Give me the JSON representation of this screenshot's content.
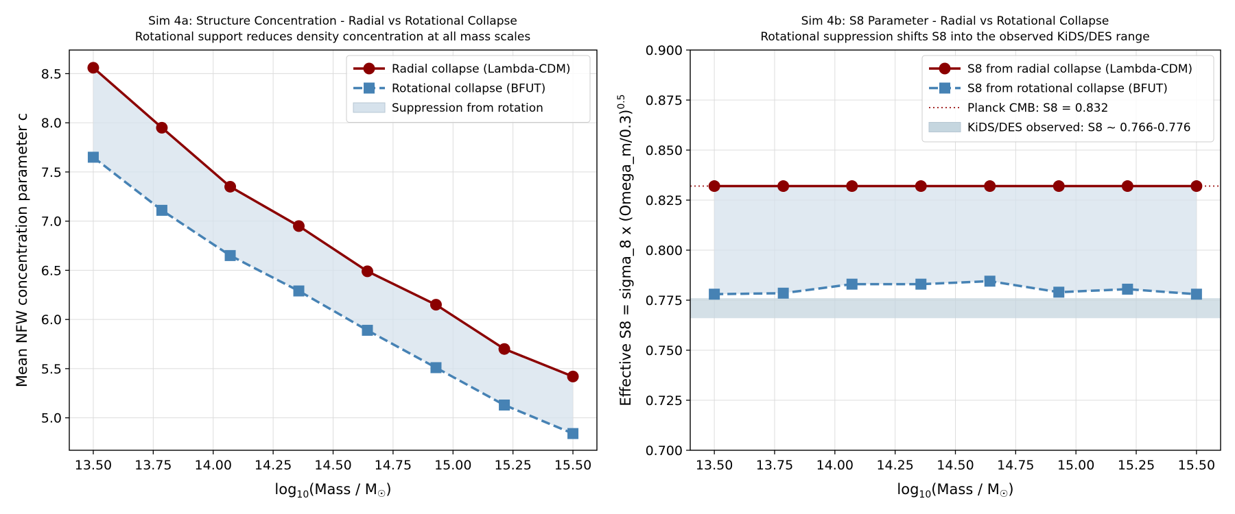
{
  "colors": {
    "radial": "#8b0000",
    "rotational": "#4682b4",
    "fill": "#d6e2ec",
    "band": "#c5d6df",
    "planck": "#a52a2a",
    "grid": "#dcdcdc"
  },
  "chart_data": [
    {
      "type": "line",
      "title": "Sim 4a: Structure Concentration - Radial vs Rotational Collapse",
      "subtitle": "Rotational support reduces density concentration at all mass scales",
      "xlabel": "log10(Mass / M☉)",
      "xlabel_main": "log",
      "xlabel_sub": "10",
      "xlabel_tail": "(Mass / M",
      "xlabel_sym": "☉",
      "xlabel_end": ")",
      "ylabel": "Mean NFW concentration parameter c",
      "xlim": [
        13.4,
        15.6
      ],
      "ylim": [
        4.67,
        8.74
      ],
      "xticks": [
        13.5,
        13.75,
        14.0,
        14.25,
        14.5,
        14.75,
        15.0,
        15.25,
        15.5
      ],
      "xtick_labels": [
        "13.50",
        "13.75",
        "14.00",
        "14.25",
        "14.50",
        "14.75",
        "15.00",
        "15.25",
        "15.50"
      ],
      "yticks": [
        5.0,
        5.5,
        6.0,
        6.5,
        7.0,
        7.5,
        8.0,
        8.5
      ],
      "ytick_labels": [
        "5.0",
        "5.5",
        "6.0",
        "6.5",
        "7.0",
        "7.5",
        "8.0",
        "8.5"
      ],
      "grid": true,
      "legend_position": "upper right",
      "x": [
        13.5,
        13.786,
        14.071,
        14.357,
        14.643,
        14.929,
        15.214,
        15.5
      ],
      "series": [
        {
          "name": "Radial collapse (Lambda-CDM)",
          "values": [
            8.56,
            7.95,
            7.35,
            6.95,
            6.49,
            6.15,
            5.7,
            5.42
          ],
          "marker": "circle",
          "style": "solid",
          "color": "#8b0000"
        },
        {
          "name": "Rotational collapse (BFUT)",
          "values": [
            7.65,
            7.11,
            6.65,
            6.29,
            5.89,
            5.51,
            5.13,
            4.84
          ],
          "marker": "square",
          "style": "dashed",
          "color": "#4682b4"
        }
      ],
      "fill_between": {
        "name": "Suppression from rotation",
        "color": "#d6e2ec"
      }
    },
    {
      "type": "line",
      "title": "Sim 4b: S8 Parameter - Radial vs Rotational Collapse",
      "subtitle": "Rotational suppression shifts S8 into the observed KiDS/DES range",
      "xlabel": "log10(Mass / M☉)",
      "xlabel_main": "log",
      "xlabel_sub": "10",
      "xlabel_tail": "(Mass / M",
      "xlabel_sym": "☉",
      "xlabel_end": ")",
      "ylabel": "Effective S8 = sigma_8 x (Omega_m/0.3)^0.5",
      "ylabel_main": "Effective S8 = sigma_8 x (Omega_m/0.3)",
      "ylabel_sup": "0.5",
      "xlim": [
        13.4,
        15.6
      ],
      "ylim": [
        0.7,
        0.9
      ],
      "xticks": [
        13.5,
        13.75,
        14.0,
        14.25,
        14.5,
        14.75,
        15.0,
        15.25,
        15.5
      ],
      "xtick_labels": [
        "13.50",
        "13.75",
        "14.00",
        "14.25",
        "14.50",
        "14.75",
        "15.00",
        "15.25",
        "15.50"
      ],
      "yticks": [
        0.7,
        0.725,
        0.75,
        0.775,
        0.8,
        0.825,
        0.85,
        0.875,
        0.9
      ],
      "ytick_labels": [
        "0.700",
        "0.725",
        "0.750",
        "0.775",
        "0.800",
        "0.825",
        "0.850",
        "0.875",
        "0.900"
      ],
      "grid": true,
      "legend_position": "upper right",
      "x": [
        13.5,
        13.786,
        14.071,
        14.357,
        14.643,
        14.929,
        15.214,
        15.5
      ],
      "series": [
        {
          "name": "S8 from radial collapse (Lambda-CDM)",
          "values": [
            0.832,
            0.832,
            0.832,
            0.832,
            0.832,
            0.832,
            0.832,
            0.832
          ],
          "marker": "circle",
          "style": "solid",
          "color": "#8b0000"
        },
        {
          "name": "S8 from rotational collapse (BFUT)",
          "values": [
            0.778,
            0.7785,
            0.783,
            0.783,
            0.7845,
            0.779,
            0.7805,
            0.778
          ],
          "marker": "square",
          "style": "dashed",
          "color": "#4682b4"
        }
      ],
      "fill_between": {
        "color": "#d6e2ec"
      },
      "hline": {
        "name": "Planck CMB: S8 = 0.832",
        "y": 0.832,
        "style": "dotted",
        "color": "#a52a2a"
      },
      "band": {
        "name": "KiDS/DES observed: S8 ~ 0.766-0.776",
        "y0": 0.766,
        "y1": 0.776,
        "color": "#c5d6df"
      }
    }
  ]
}
